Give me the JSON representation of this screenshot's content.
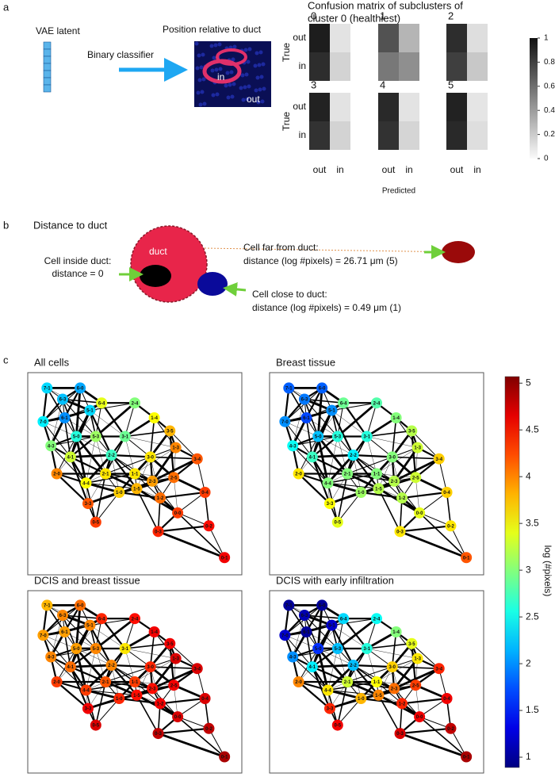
{
  "panel_a": {
    "label": "a",
    "latent": "VAE latent",
    "classifier": "Binary classifier",
    "position": "Position relative to duct",
    "image_in": "in",
    "image_out": "out",
    "confusion": {
      "title": [
        "Confusion matrix of subclusters of",
        "cluster 0 (healthiest)"
      ],
      "xlabel": "Predicted",
      "ylabel": "True",
      "row_labels": [
        "out",
        "in"
      ],
      "col_labels": [
        "out",
        "in"
      ],
      "subplots": [
        {
          "name": "0",
          "values": [
            [
              0.95,
              0.08
            ],
            [
              0.88,
              0.15
            ]
          ]
        },
        {
          "name": "1",
          "values": [
            [
              0.72,
              0.28
            ],
            [
              0.55,
              0.45
            ]
          ]
        },
        {
          "name": "2",
          "values": [
            [
              0.88,
              0.1
            ],
            [
              0.8,
              0.2
            ]
          ]
        },
        {
          "name": "3",
          "values": [
            [
              0.93,
              0.08
            ],
            [
              0.86,
              0.15
            ]
          ]
        },
        {
          "name": "4",
          "values": [
            [
              0.9,
              0.08
            ],
            [
              0.86,
              0.14
            ]
          ]
        },
        {
          "name": "5",
          "values": [
            [
              0.93,
              0.07
            ],
            [
              0.9,
              0.1
            ]
          ]
        }
      ],
      "colorbar": {
        "lim": [
          0,
          1
        ],
        "ticks": [
          0,
          0.2,
          0.4,
          0.6,
          0.8,
          1
        ]
      }
    }
  },
  "panel_b": {
    "label": "b",
    "title": "Distance to duct",
    "duct": "duct",
    "inside": [
      "Cell inside duct:",
      "distance = 0"
    ],
    "far": [
      "Cell far from duct:",
      "distance (log #pixels) = 26.71 μm (5)"
    ],
    "close": [
      "Cell close to duct:",
      "distance (log #pixels) = 0.49 μm (1)"
    ]
  },
  "panel_c": {
    "label": "c",
    "nodes": [
      "7-1",
      "7-0",
      "6-3",
      "6-0",
      "6-1",
      "5-1",
      "5-0",
      "4-3",
      "4-1",
      "5-3",
      "3-1",
      "6-4",
      "2-4",
      "1-4",
      "3-5",
      "1-3",
      "2-2",
      "3-0",
      "2-0",
      "2-1",
      "1-1",
      "1-0",
      "1-5",
      "2-3",
      "4-4",
      "2-5",
      "3-4",
      "1-2",
      "0-4",
      "3-3",
      "0-0",
      "0-3",
      "0-2",
      "0-5",
      "0-1"
    ],
    "graphs": [
      {
        "title": "All cells",
        "values": [
          2.3,
          2.4,
          2.2,
          2.1,
          2.0,
          2.3,
          2.6,
          3.0,
          3.3,
          3.1,
          2.9,
          3.4,
          3.0,
          3.5,
          3.8,
          4.0,
          2.7,
          3.6,
          4.0,
          3.6,
          3.6,
          3.7,
          3.8,
          3.9,
          3.5,
          4.1,
          4.2,
          4.1,
          4.3,
          4.2,
          4.3,
          4.4,
          4.5,
          4.3,
          4.6
        ]
      },
      {
        "title": "Breast tissue",
        "values": [
          1.8,
          2.0,
          1.9,
          1.8,
          1.7,
          2.0,
          2.2,
          2.5,
          2.7,
          2.6,
          2.6,
          2.9,
          2.8,
          3.0,
          3.2,
          3.3,
          2.4,
          3.0,
          3.6,
          3.0,
          3.0,
          3.1,
          3.2,
          3.2,
          3.0,
          3.3,
          3.7,
          3.2,
          3.7,
          3.5,
          3.4,
          3.6,
          3.6,
          3.4,
          4.2
        ]
      },
      {
        "title": "DCIS and breast tissue",
        "values": [
          3.8,
          3.9,
          4.0,
          4.1,
          3.9,
          4.0,
          3.9,
          4.0,
          4.1,
          4.0,
          3.6,
          4.4,
          4.5,
          4.6,
          4.6,
          4.7,
          4.0,
          4.4,
          4.3,
          4.2,
          4.3,
          4.4,
          4.5,
          4.5,
          4.3,
          4.6,
          4.7,
          4.6,
          4.7,
          4.6,
          4.7,
          4.8,
          4.8,
          4.7,
          4.9
        ]
      },
      {
        "title": "DCIS with early infiltration",
        "values": [
          1.0,
          1.2,
          1.1,
          1.0,
          1.0,
          1.2,
          1.6,
          2.0,
          2.4,
          2.2,
          2.6,
          2.3,
          2.5,
          3.0,
          3.4,
          3.6,
          2.2,
          3.7,
          4.0,
          3.3,
          3.5,
          3.8,
          4.0,
          4.1,
          3.6,
          4.3,
          4.4,
          4.4,
          4.6,
          4.4,
          4.6,
          4.7,
          4.8,
          4.6,
          4.9
        ]
      }
    ],
    "colorbar": {
      "label": "log (#pixels)",
      "lim": [
        0.89,
        5.07
      ],
      "ticks": [
        1,
        1.5,
        2,
        2.5,
        3,
        3.5,
        4,
        4.5,
        5
      ]
    }
  }
}
